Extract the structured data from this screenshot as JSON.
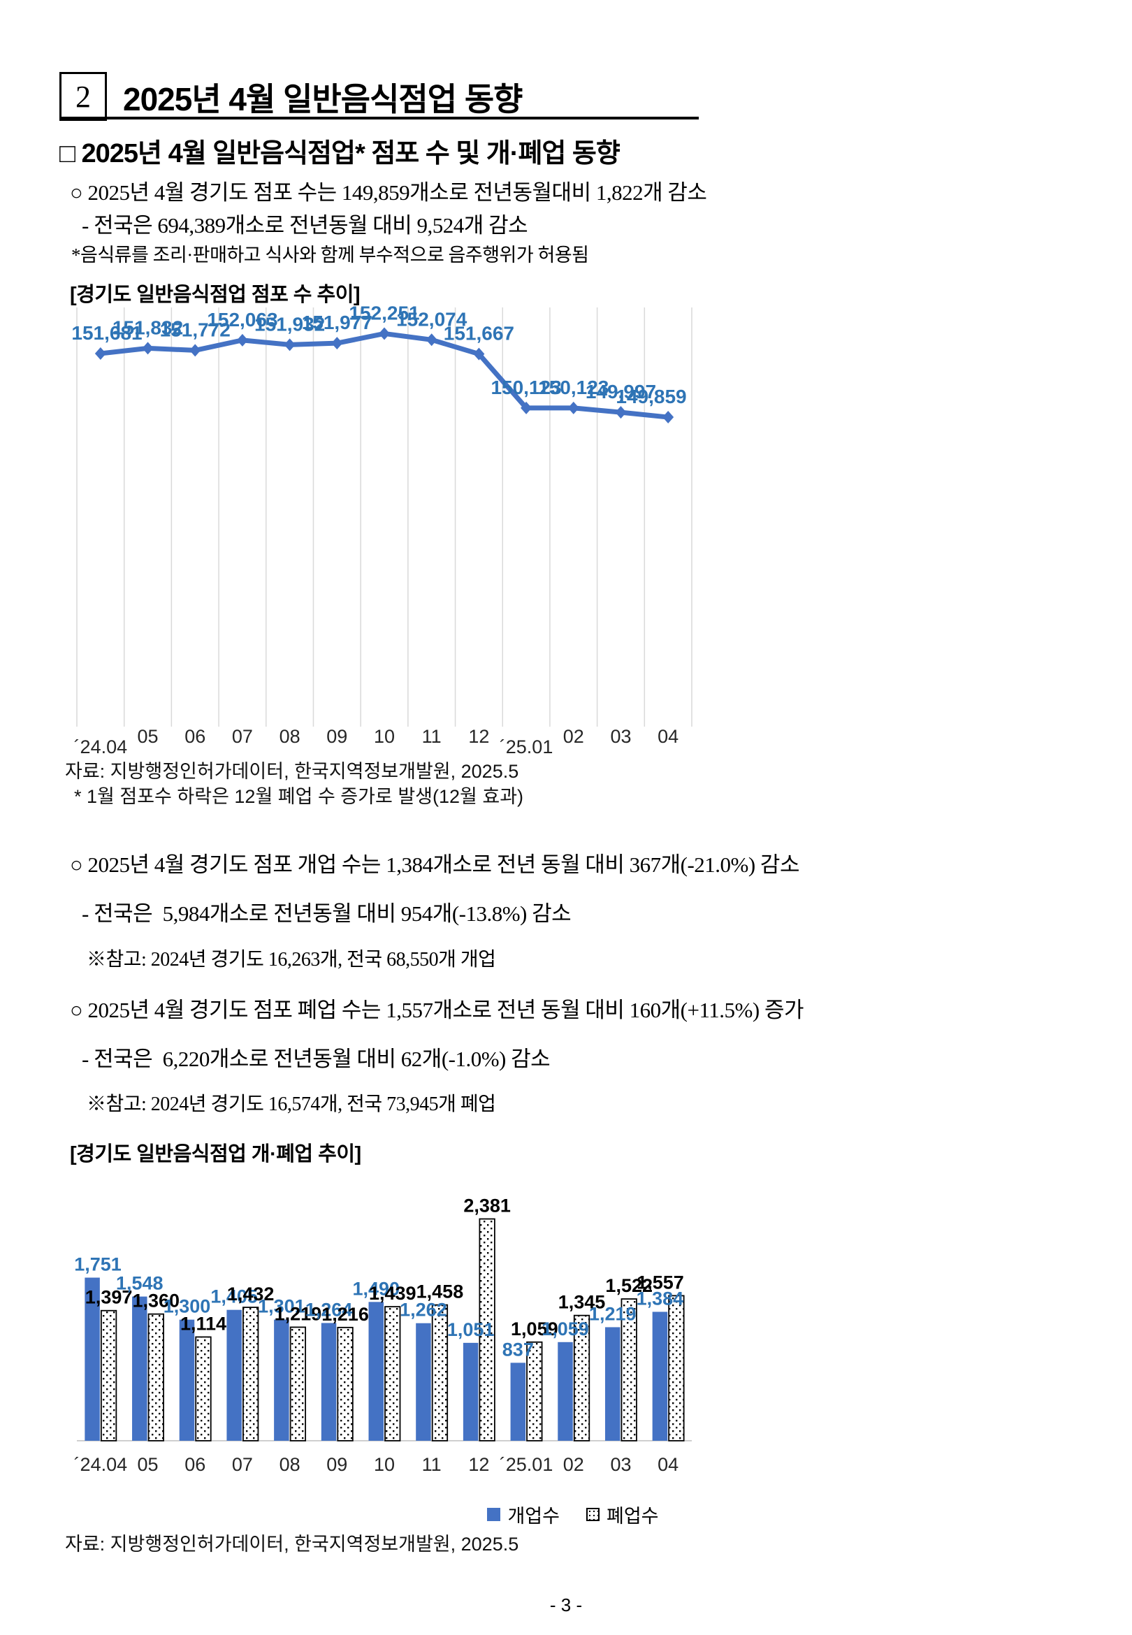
{
  "header": {
    "section_number": "2",
    "title": "2025년 4월 일반음식점업 동향"
  },
  "section": {
    "heading": "□ 2025년 4월 일반음식점업* 점포 수 및 개·폐업 동향",
    "intro": {
      "line1": "○ 2025년 4월 경기도 점포 수는 149,859개소로 전년동월대비 1,822개 감소",
      "line2": "- 전국은 694,389개소로 전년동월 대비 9,524개 감소",
      "footnote": "*음식류를 조리·판매하고 식사와 함께 부수적으로 음주행위가 허용됨"
    },
    "open_close": {
      "open_line": "○ 2025년 4월 경기도 점포 개업 수는 1,384개소로 전년 동월 대비 367개(-21.0%) 감소",
      "open_sub": "- 전국은  5,984개소로 전년동월 대비 954개(-13.8%) 감소",
      "open_ref": "※참고: 2024년 경기도 16,263개, 전국 68,550개 개업",
      "close_line": "○ 2025년 4월 경기도 점포 폐업 수는 1,557개소로 전년 동월 대비 160개(+11.5%) 증가",
      "close_sub": "- 전국은  6,220개소로 전년동월 대비 62개(-1.0%) 감소",
      "close_ref": "※참고: 2024년 경기도 16,574개, 전국 73,945개 폐업"
    }
  },
  "chart_data": [
    {
      "type": "line",
      "title": "[경기도 일반음식점업 점포 수 추이]",
      "categories": [
        "´24.04",
        "05",
        "06",
        "07",
        "08",
        "09",
        "10",
        "11",
        "12",
        "´25.01",
        "02",
        "03",
        "04"
      ],
      "values": [
        151681,
        151832,
        151772,
        152063,
        151932,
        151977,
        152251,
        152074,
        151667,
        150123,
        150123,
        149997,
        149859
      ],
      "ylim": [
        141000,
        153000
      ],
      "grid": "vertical-only",
      "line_color": "#4472C4",
      "label_color": "#2E74B5",
      "gridline_color": "#D9D9D9",
      "source": "자료: 지방행정인허가데이터, 한국지역정보개발원, 2025.5",
      "note": "* 1월 점포수 하락은 12월 폐업 수 증가로 발생(12월 효과)"
    },
    {
      "type": "bar",
      "title": "[경기도 일반음식점업 개·폐업 추이]",
      "categories": [
        "´24.04",
        "05",
        "06",
        "07",
        "08",
        "09",
        "10",
        "11",
        "12",
        "´25.01",
        "02",
        "03",
        "04"
      ],
      "series": [
        {
          "name": "개업수",
          "style": "solid",
          "color": "#4472C4",
          "label_color": "#2E74B5",
          "values": [
            1751,
            1548,
            1300,
            1405,
            1301,
            1264,
            1490,
            1262,
            1051,
            837,
            1059,
            1219,
            1384
          ]
        },
        {
          "name": "폐업수",
          "style": "dotted-pattern",
          "color": "#FFFFFF",
          "outline": "#000000",
          "label_color": "#000000",
          "values": [
            1397,
            1360,
            1114,
            1432,
            1219,
            1216,
            1439,
            1458,
            2381,
            1059,
            1345,
            1522,
            1557
          ]
        }
      ],
      "ylim": [
        0,
        3000
      ],
      "grid": "off",
      "legend_position": "bottom",
      "source": "자료: 지방행정인허가데이터, 한국지역정보개발원, 2025.5"
    }
  ],
  "footer": {
    "page_number": "- 3 -"
  }
}
